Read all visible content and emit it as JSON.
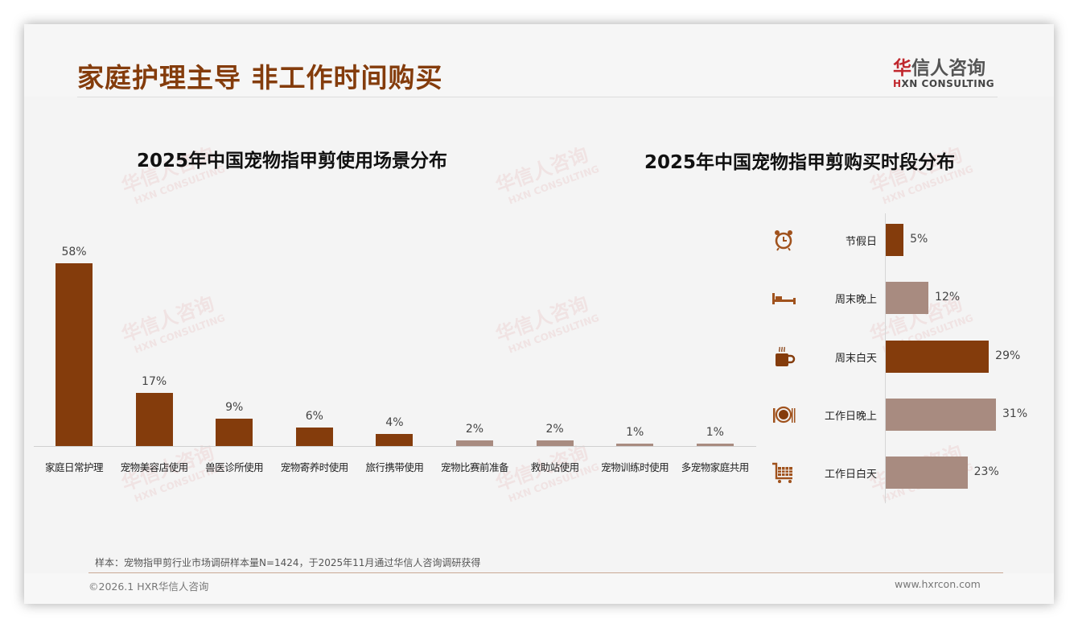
{
  "header": {
    "title": "家庭护理主导 非工作时间购买",
    "logo_cn_accent": "华",
    "logo_cn_rest": "信人咨询",
    "logo_en_accent": "H",
    "logo_en_rest": "XN CONSULTING"
  },
  "watermark": {
    "cn": "华信人咨询",
    "en": "HXN CONSULTING"
  },
  "colors": {
    "brand": "#843c0c",
    "primary_bar": "#843c0c",
    "secondary_bar": "#a88b80",
    "background": "#f4f4f4"
  },
  "chart_data": [
    {
      "type": "bar",
      "title": "2025年中国宠物指甲剪使用场景分布",
      "xlabel": "",
      "ylabel": "",
      "categories": [
        "家庭日常护理",
        "宠物美容店使用",
        "兽医诊所使用",
        "宠物寄养时使用",
        "旅行携带使用",
        "宠物比赛前准备",
        "救助站使用",
        "宠物训练时使用",
        "多宠物家庭共用"
      ],
      "values": [
        58,
        17,
        9,
        6,
        4,
        2,
        2,
        1,
        1
      ],
      "labels": [
        "58%",
        "17%",
        "9%",
        "6%",
        "4%",
        "2%",
        "2%",
        "1%",
        "1%"
      ],
      "bar_colors": [
        "#843c0c",
        "#843c0c",
        "#843c0c",
        "#843c0c",
        "#843c0c",
        "#a88b80",
        "#a88b80",
        "#a88b80",
        "#a88b80"
      ],
      "unit": "%",
      "grid": false,
      "legend": null
    },
    {
      "type": "bar",
      "orientation": "horizontal",
      "title": "2025年中国宠物指甲剪购买时段分布",
      "categories": [
        "节假日",
        "周末晚上",
        "周末白天",
        "工作日晚上",
        "工作日白天"
      ],
      "values": [
        5,
        12,
        29,
        31,
        23
      ],
      "labels": [
        "5%",
        "12%",
        "29%",
        "31%",
        "23%"
      ],
      "icons": [
        "alarm-clock-icon",
        "bed-icon",
        "coffee-cup-icon",
        "plate-cutlery-icon",
        "shopping-cart-icon"
      ],
      "bar_colors": [
        "#843c0c",
        "#a88b80",
        "#843c0c",
        "#a88b80",
        "#a88b80"
      ],
      "unit": "%",
      "grid": false,
      "legend": null
    }
  ],
  "footer": {
    "note": "样本：宠物指甲剪行业市场调研样本量N=1424，于2025年11月通过华信人咨询调研获得",
    "copyright": "©2026.1 HXR华信人咨询",
    "website": "www.hxrcon.com"
  }
}
